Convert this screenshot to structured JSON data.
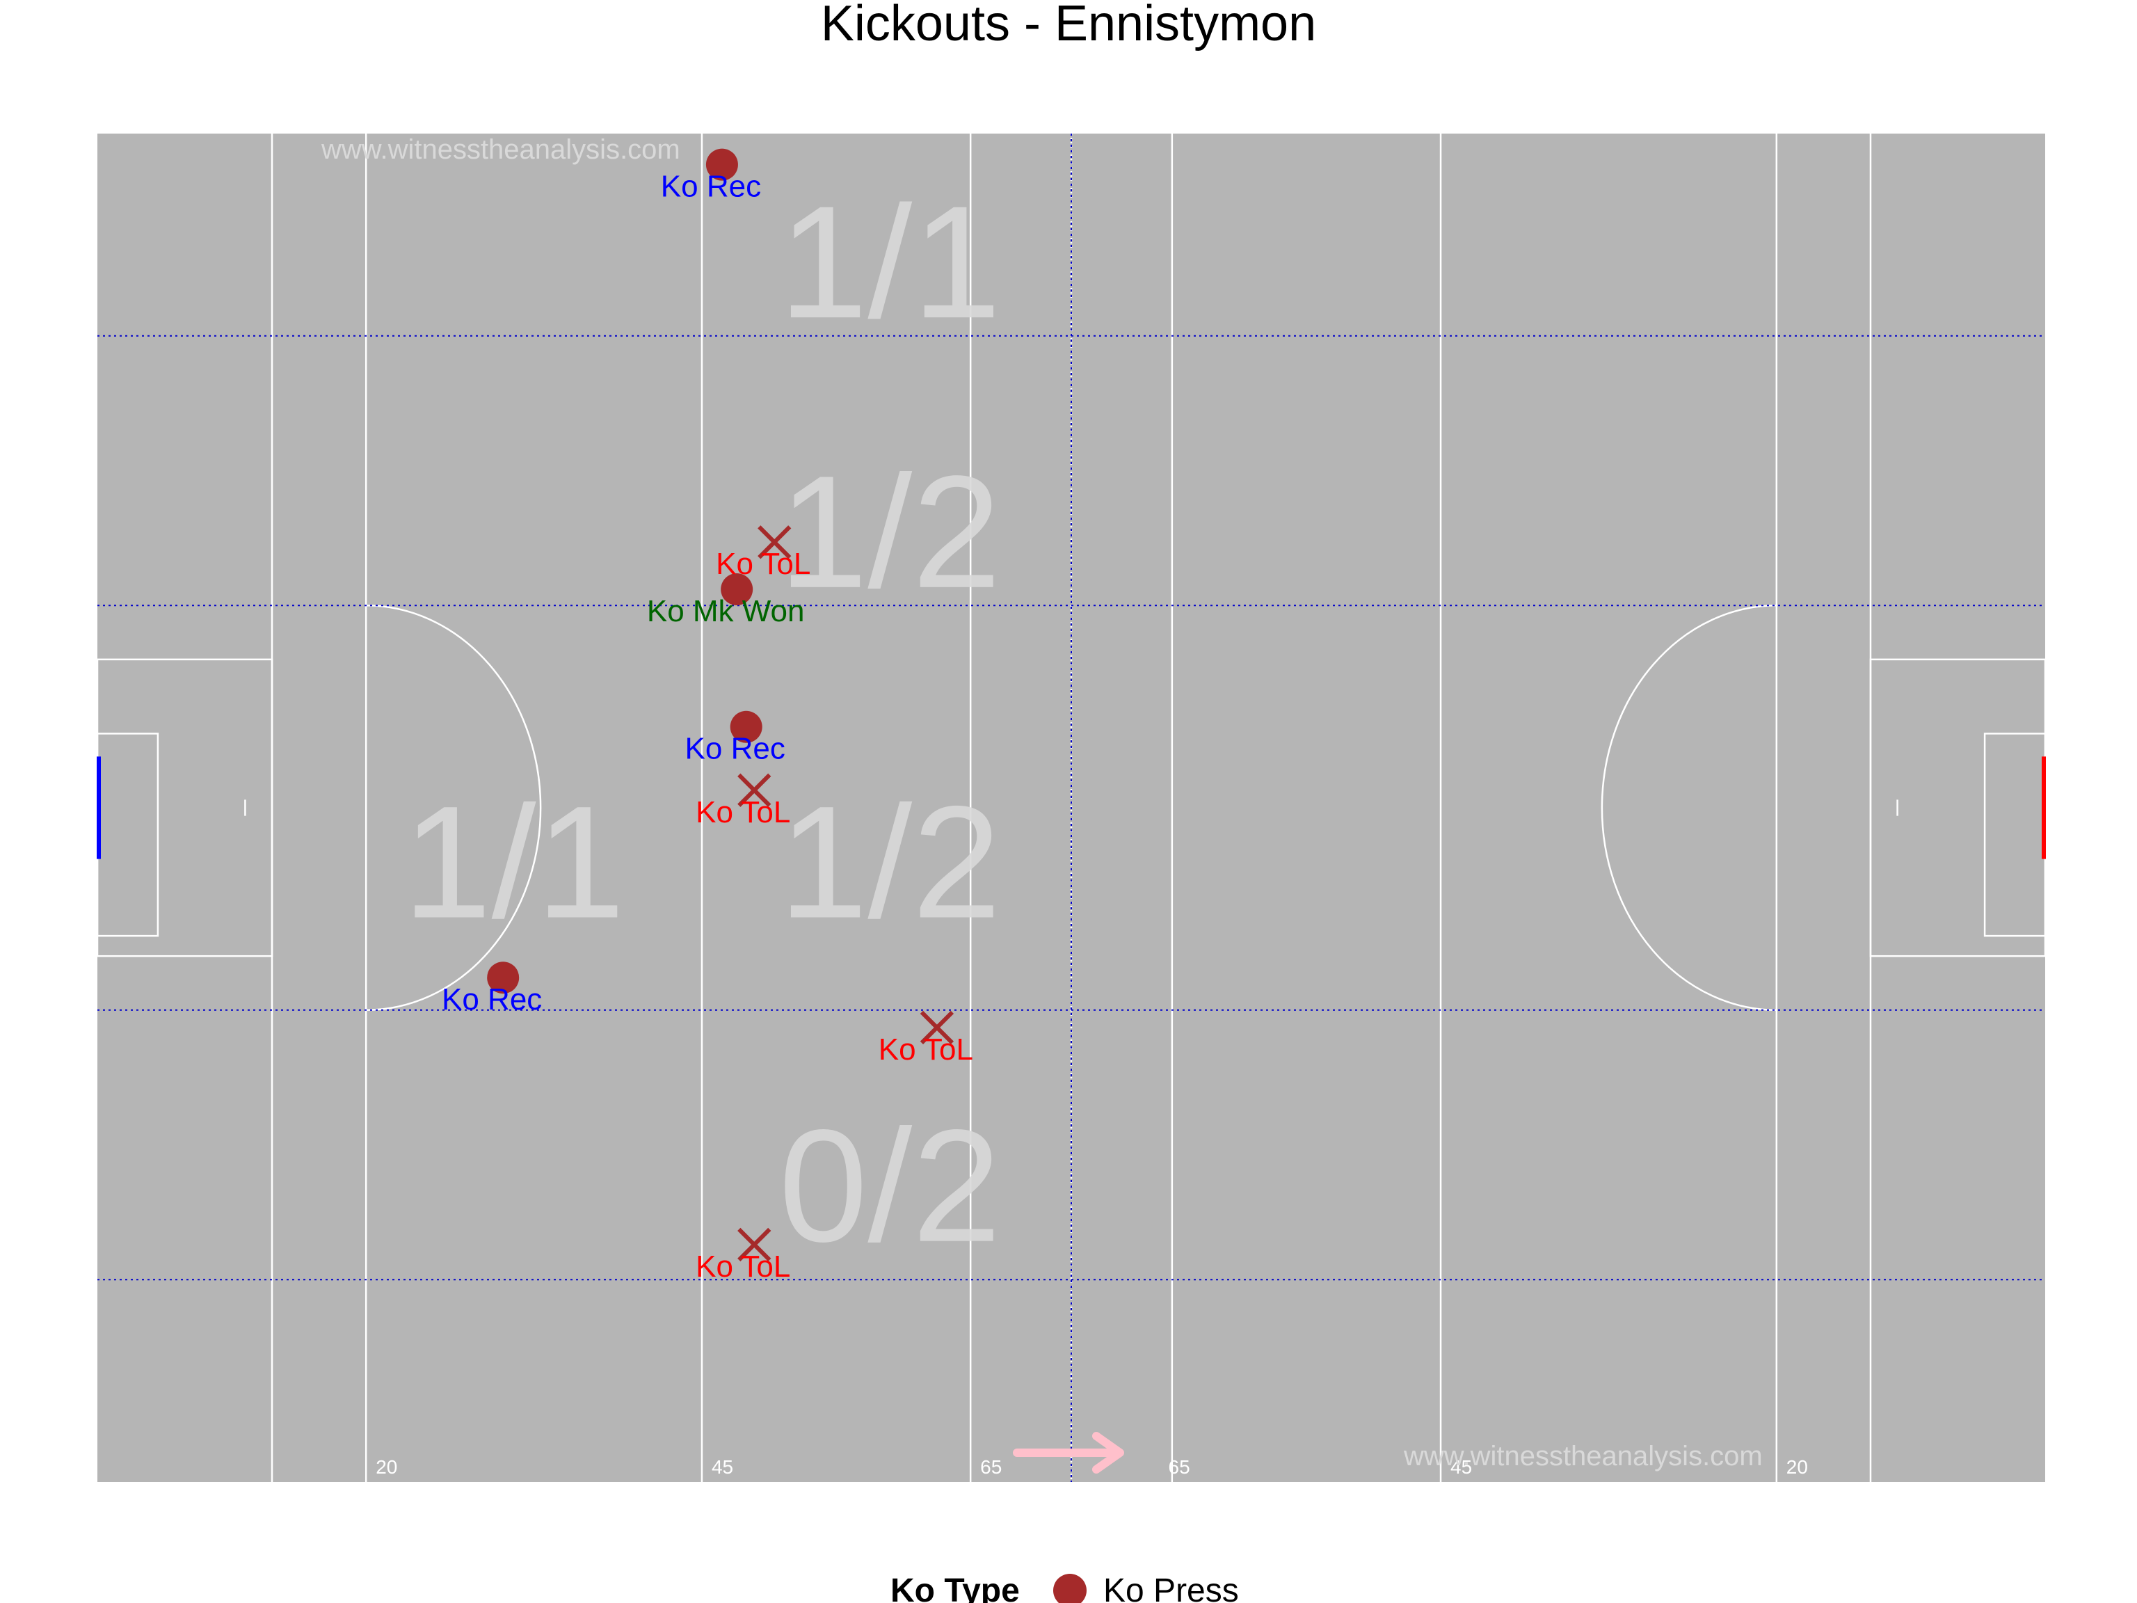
{
  "chart_data": {
    "type": "scatter",
    "title": "Kickouts - Ennistymon",
    "x_range": [
      0,
      145
    ],
    "y_range": [
      0,
      100
    ],
    "distance_labels": [
      "20",
      "45",
      "65",
      "65",
      "45",
      "20"
    ],
    "zone_scores": [
      {
        "label": "1/1",
        "x": 59,
        "y": 90.5
      },
      {
        "label": "1/2",
        "x": 59,
        "y": 70.5
      },
      {
        "label": "1/1",
        "x": 31,
        "y": 46
      },
      {
        "label": "1/2",
        "x": 59,
        "y": 46
      },
      {
        "label": "0/2",
        "x": 59,
        "y": 22
      }
    ],
    "points": [
      {
        "x": 46.5,
        "y": 97.7,
        "shape": "circle",
        "label": "Ko Rec",
        "label_color": "#0000ff"
      },
      {
        "x": 50.4,
        "y": 69.7,
        "shape": "cross",
        "label": "Ko ToL",
        "label_color": "#ff0000"
      },
      {
        "x": 47.6,
        "y": 66.2,
        "shape": "circle",
        "label": "Ko Mk Won",
        "label_color": "#006400"
      },
      {
        "x": 48.3,
        "y": 56.0,
        "shape": "circle",
        "label": "Ko Rec",
        "label_color": "#0000ff"
      },
      {
        "x": 48.9,
        "y": 51.3,
        "shape": "cross",
        "label": "Ko ToL",
        "label_color": "#ff0000"
      },
      {
        "x": 30.2,
        "y": 37.4,
        "shape": "circle",
        "label": "Ko Rec",
        "label_color": "#0000ff"
      },
      {
        "x": 62.5,
        "y": 33.7,
        "shape": "cross",
        "label": "Ko ToL",
        "label_color": "#ff0000"
      },
      {
        "x": 48.9,
        "y": 17.6,
        "shape": "cross",
        "label": "Ko ToL",
        "label_color": "#ff0000"
      }
    ],
    "legend": {
      "title": "Ko Type",
      "entries": [
        {
          "label": "Ko Press",
          "color": "#a52a2a"
        }
      ],
      "position": "bottom"
    },
    "watermark": "www.witnesstheanalysis.com",
    "colors": {
      "pitch": "#b5b5b5",
      "marker": "#a52a2a",
      "left_goal": "#0000ff",
      "right_goal": "#ff0000",
      "direction_arrow": "#ffc0cb"
    }
  }
}
